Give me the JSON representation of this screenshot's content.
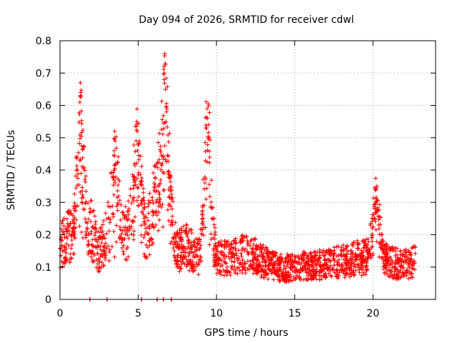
{
  "chart_data": {
    "type": "scatter",
    "title": "Day 094 of 2026, SRMTID for receiver cdwl",
    "xlabel": "GPS time / hours",
    "ylabel": "SRMTID / TECUs",
    "xlim": [
      0,
      24
    ],
    "ylim": [
      0,
      0.8
    ],
    "xticks": [
      0,
      5,
      10,
      15,
      20
    ],
    "xtick_labels": [
      "0",
      "5",
      "10",
      "15",
      "20"
    ],
    "yticks": [
      0,
      0.1,
      0.2,
      0.3,
      0.4,
      0.5,
      0.6,
      0.7,
      0.8
    ],
    "ytick_labels": [
      "0",
      "0.1",
      "0.2",
      "0.3",
      "0.4",
      "0.5",
      "0.6",
      "0.7",
      "0.8"
    ],
    "grid": true,
    "marker": "plus",
    "series_color": "#ff0000",
    "x_range_of_data": [
      0,
      22.7
    ],
    "envelope_description_hours": [
      0,
      0.5,
      1,
      1.3,
      2,
      2.5,
      3,
      3.5,
      4,
      4.5,
      5,
      5.5,
      6,
      6.5,
      7,
      7.5,
      8,
      8.5,
      9,
      9.5,
      10,
      11,
      12,
      13,
      14,
      15,
      16,
      17,
      18,
      19,
      20,
      21,
      22,
      22.7
    ],
    "typical_level": [
      0.17,
      0.2,
      0.18,
      0.2,
      0.22,
      0.15,
      0.2,
      0.15,
      0.2,
      0.22,
      0.3,
      0.2,
      0.3,
      0.3,
      0.25,
      0.15,
      0.17,
      0.15,
      0.12,
      0.2,
      0.13,
      0.13,
      0.15,
      0.12,
      0.1,
      0.1,
      0.11,
      0.11,
      0.12,
      0.13,
      0.14,
      0.12,
      0.11,
      0.12
    ],
    "peaks": [
      {
        "x": 1.3,
        "y": 0.67
      },
      {
        "x": 3.5,
        "y": 0.52
      },
      {
        "x": 4.9,
        "y": 0.55
      },
      {
        "x": 6.7,
        "y": 0.76
      },
      {
        "x": 9.4,
        "y": 0.59
      },
      {
        "x": 20.2,
        "y": 0.34
      }
    ],
    "zero_points_x": [
      1.9,
      3.0,
      5.2,
      6.2,
      6.6,
      7.1
    ]
  }
}
